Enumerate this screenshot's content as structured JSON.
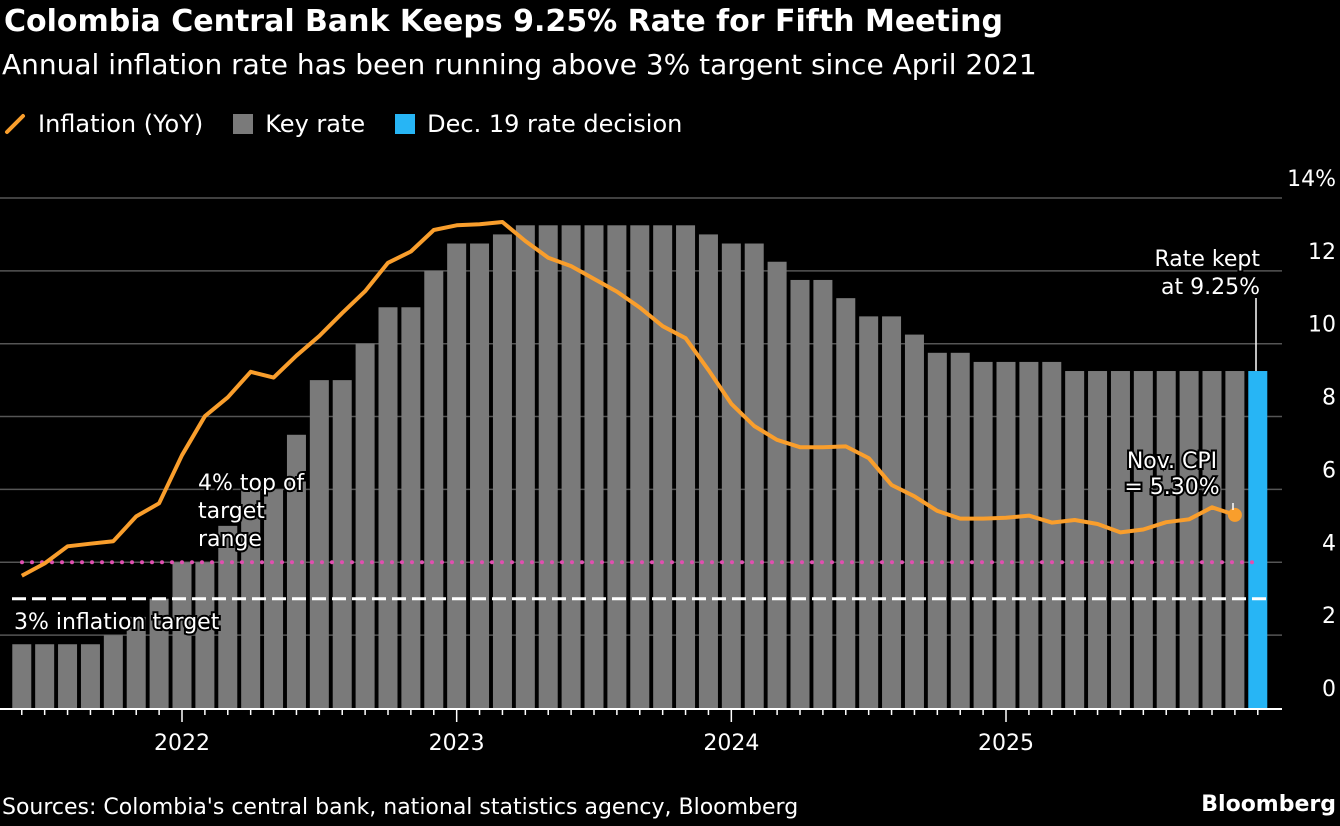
{
  "title": "Colombia Central Bank Keeps 9.25% Rate for Fifth Meeting",
  "subtitle": "Annual inflation rate has been running above 3% targent since April 2021",
  "source": "Sources: Colombia's central bank, national statistics agency, Bloomberg",
  "brand": "Bloomberg",
  "colors": {
    "inflation": "#f99e2c",
    "key_rate": "#7a7a7a",
    "decision": "#27b5f5",
    "target_top": "#e04fb0",
    "target": "#ffffff",
    "background": "#000000"
  },
  "chart_data": {
    "type": "bar",
    "legend": [
      {
        "name": "Inflation (YoY)",
        "icon": "line-icon"
      },
      {
        "name": "Key rate",
        "icon": "square-icon"
      },
      {
        "name": "Dec. 19 rate decision",
        "icon": "square-icon"
      }
    ],
    "legend_placement": "top-left",
    "ylim": [
      0,
      14
    ],
    "yticks": [
      "0",
      "2",
      "4",
      "6",
      "8",
      "10",
      "12",
      "14%"
    ],
    "xticks": [
      "2022",
      "2023",
      "2024",
      "2025"
    ],
    "grid": true,
    "key_rate": {
      "start": "2021-06",
      "values": [
        1.75,
        1.75,
        1.75,
        1.75,
        2.0,
        2.5,
        3.0,
        4.0,
        4.0,
        5.0,
        6.0,
        6.0,
        7.5,
        9.0,
        9.0,
        10.0,
        11.0,
        11.0,
        12.0,
        12.75,
        12.75,
        13.0,
        13.25,
        13.25,
        13.25,
        13.25,
        13.25,
        13.25,
        13.25,
        13.25,
        13.0,
        12.75,
        12.75,
        12.25,
        11.75,
        11.75,
        11.25,
        10.75,
        10.75,
        10.25,
        9.75,
        9.75,
        9.5,
        9.5,
        9.5,
        9.5,
        9.25,
        9.25,
        9.25,
        9.25,
        9.25,
        9.25,
        9.25,
        9.25,
        9.25
      ],
      "highlight_last": "Dec. 19 rate decision"
    },
    "inflation": {
      "start": "2021-06",
      "values": [
        3.63,
        3.97,
        4.44,
        4.51,
        4.58,
        5.26,
        5.62,
        6.94,
        8.01,
        8.53,
        9.23,
        9.07,
        9.67,
        10.21,
        10.84,
        11.44,
        12.22,
        12.53,
        13.12,
        13.25,
        13.28,
        13.34,
        12.82,
        12.36,
        12.13,
        11.78,
        11.43,
        10.99,
        10.48,
        10.15,
        9.28,
        8.35,
        7.74,
        7.36,
        7.16,
        7.16,
        7.18,
        6.86,
        6.12,
        5.81,
        5.41,
        5.2,
        5.2,
        5.22,
        5.28,
        5.09,
        5.16,
        5.05,
        4.82,
        4.9,
        5.1,
        5.18,
        5.51,
        5.3
      ]
    },
    "reference_lines": [
      {
        "value": 4,
        "label": "4% top of target range",
        "label_lines": [
          "4% top of",
          "target",
          "range"
        ],
        "style": "dotted"
      },
      {
        "value": 3,
        "label": "3% inflation target",
        "style": "dashed"
      }
    ],
    "annotations": [
      {
        "lines": [
          "Rate kept",
          "at 9.25%"
        ]
      },
      {
        "lines": [
          "Nov. CPI",
          "= 5.30%"
        ]
      }
    ]
  }
}
